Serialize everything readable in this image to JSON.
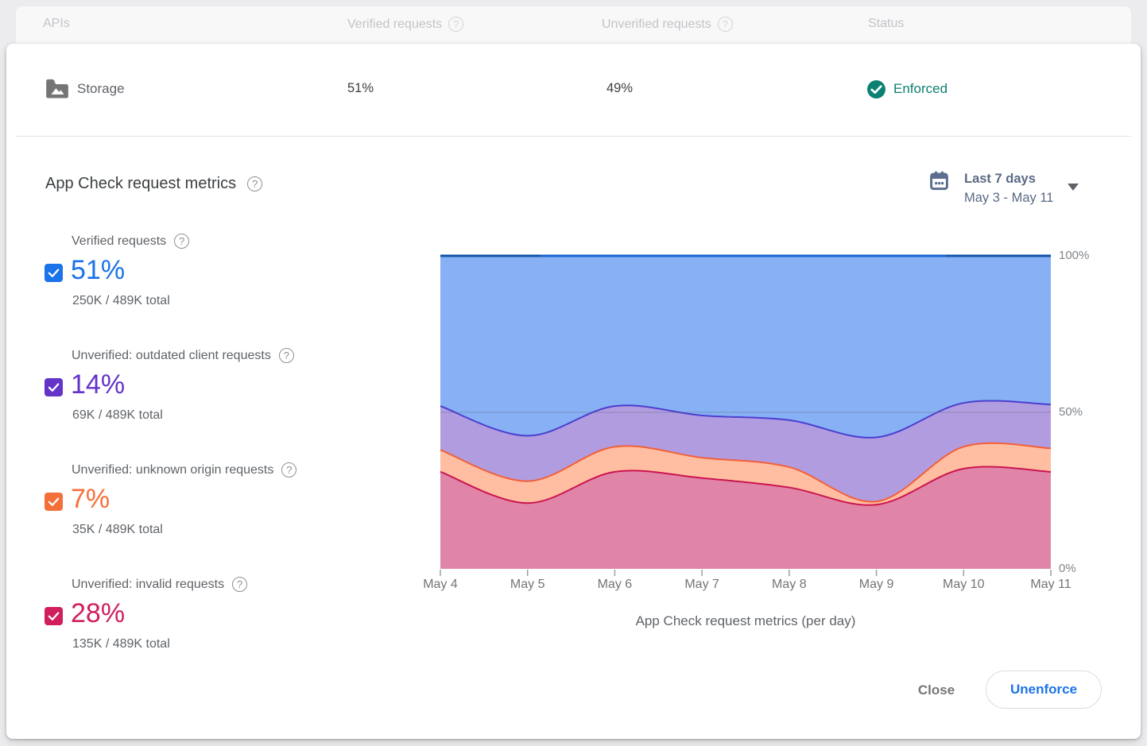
{
  "table": {
    "columns": [
      "APIs",
      "Verified requests",
      "Unverified requests",
      "Status"
    ],
    "row": {
      "api": "Storage",
      "verified": "51%",
      "unverified": "49%",
      "status": "Enforced",
      "status_color": "#0b8073"
    }
  },
  "section": {
    "title": "App Check request metrics"
  },
  "date_range": {
    "label": "Last 7 days",
    "range": "May 3 - May 11"
  },
  "legend": {
    "items": [
      {
        "label": "Verified requests",
        "value": "51%",
        "total": "250K / 489K total",
        "color": "#1a73e8",
        "checked": true
      },
      {
        "label": "Unverified: outdated client requests",
        "value": "14%",
        "total": "69K / 489K total",
        "color": "#6434c9",
        "checked": true
      },
      {
        "label": "Unverified: unknown origin requests",
        "value": "7%",
        "total": "35K / 489K total",
        "color": "#f4703a",
        "checked": true
      },
      {
        "label": "Unverified: invalid requests",
        "value": "28%",
        "total": "135K / 489K total",
        "color": "#d01e5f",
        "checked": true
      }
    ]
  },
  "chart_data": {
    "type": "area",
    "stacked": true,
    "normalized": "percent",
    "title": "App Check request metrics (per day)",
    "x": [
      "May 4",
      "May 5",
      "May 6",
      "May 7",
      "May 8",
      "May 9",
      "May 10",
      "May 11"
    ],
    "series": [
      {
        "name": "Unverified: invalid requests",
        "values": [
          31,
          21,
          31,
          29,
          26,
          20.5,
          32,
          31
        ],
        "fill": "#e085a7",
        "stroke": "#cb1550"
      },
      {
        "name": "Unverified: unknown origin requests",
        "values": [
          7,
          7,
          8,
          6.5,
          6.5,
          1,
          7,
          7.5
        ],
        "fill": "#ffbda1",
        "stroke": "#f2603a"
      },
      {
        "name": "Unverified: outdated client requests",
        "values": [
          14,
          14.5,
          13,
          13.5,
          15,
          20.5,
          14,
          14
        ],
        "fill": "#b19ce0",
        "stroke": "#4a3fd0"
      },
      {
        "name": "Verified requests",
        "values": [
          48,
          57.5,
          48,
          51,
          52.5,
          58,
          47,
          47.5
        ],
        "fill": "#87b1f4",
        "stroke": "#1966d2"
      }
    ],
    "ylim": [
      0,
      100
    ],
    "yticks": [
      0,
      50,
      100
    ],
    "ytick_labels": [
      "0%",
      "50%",
      "100%"
    ],
    "grid": "50% line only",
    "legend_position": "left"
  },
  "footer": {
    "close": "Close",
    "unenforce": "Unenforce"
  }
}
